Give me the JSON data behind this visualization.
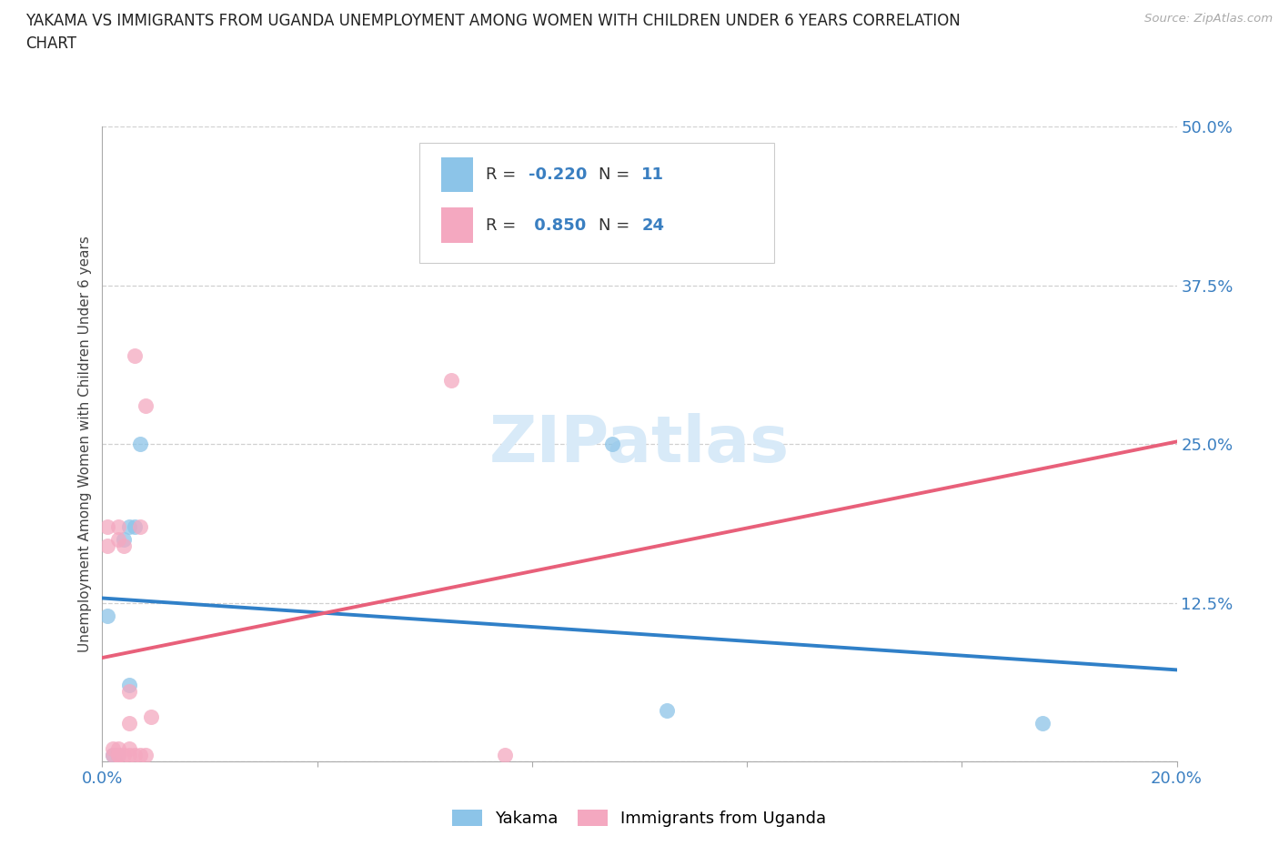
{
  "title_line1": "YAKAMA VS IMMIGRANTS FROM UGANDA UNEMPLOYMENT AMONG WOMEN WITH CHILDREN UNDER 6 YEARS CORRELATION",
  "title_line2": "CHART",
  "source": "Source: ZipAtlas.com",
  "ylabel": "Unemployment Among Women with Children Under 6 years",
  "xlim": [
    0.0,
    0.2
  ],
  "ylim": [
    0.0,
    0.5
  ],
  "xticks": [
    0.0,
    0.04,
    0.08,
    0.12,
    0.16,
    0.2
  ],
  "yticks": [
    0.0,
    0.125,
    0.25,
    0.375,
    0.5
  ],
  "ytick_labels": [
    "",
    "12.5%",
    "25.0%",
    "37.5%",
    "50.0%"
  ],
  "xtick_labels": [
    "0.0%",
    "",
    "",
    "",
    "",
    "20.0%"
  ],
  "yakama_color": "#8cc4e8",
  "uganda_color": "#f4a8c0",
  "yakama_line_color": "#3080c8",
  "uganda_line_color": "#e8607a",
  "yakama_r": -0.22,
  "yakama_n": 11,
  "uganda_r": 0.85,
  "uganda_n": 24,
  "yakama_x": [
    0.001,
    0.002,
    0.003,
    0.004,
    0.005,
    0.005,
    0.006,
    0.007,
    0.095,
    0.105,
    0.175
  ],
  "yakama_y": [
    0.115,
    0.005,
    0.005,
    0.175,
    0.185,
    0.06,
    0.185,
    0.25,
    0.25,
    0.04,
    0.03
  ],
  "uganda_x": [
    0.001,
    0.001,
    0.002,
    0.002,
    0.003,
    0.003,
    0.003,
    0.003,
    0.003,
    0.004,
    0.004,
    0.005,
    0.005,
    0.005,
    0.005,
    0.006,
    0.006,
    0.007,
    0.007,
    0.008,
    0.008,
    0.009,
    0.065,
    0.075
  ],
  "uganda_y": [
    0.17,
    0.185,
    0.01,
    0.005,
    0.005,
    0.005,
    0.01,
    0.175,
    0.185,
    0.005,
    0.17,
    0.005,
    0.01,
    0.03,
    0.055,
    0.005,
    0.32,
    0.005,
    0.185,
    0.005,
    0.28,
    0.035,
    0.3,
    0.005
  ],
  "background_color": "#ffffff",
  "grid_color": "#d0d0d0",
  "watermark_color": "#d8eaf8"
}
